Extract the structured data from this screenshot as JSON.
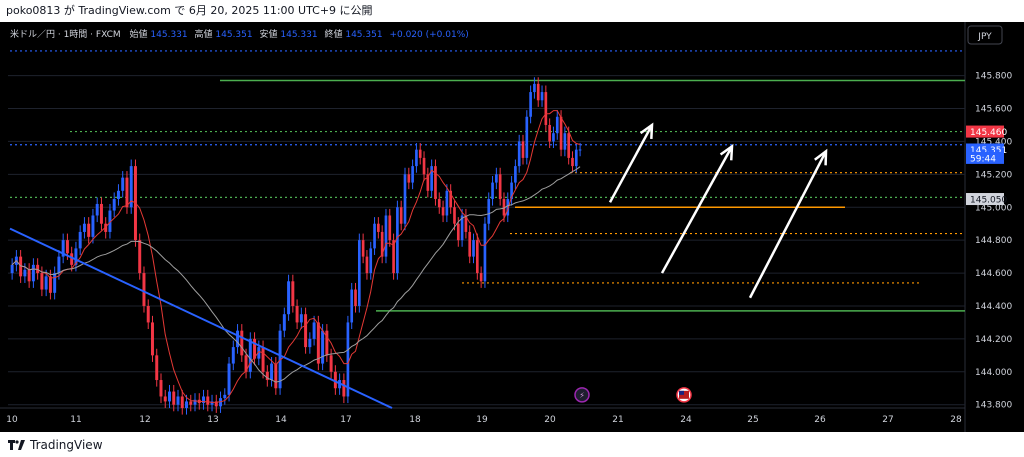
{
  "header": {
    "publish_text": "poko0813 が TradingView.com で 6月 20, 2025 11:00 UTC+9 に公開"
  },
  "legend": {
    "symbol": "米ドル／円 · 1時間 · FXCM",
    "open_label": "始値",
    "open": "145.331",
    "high_label": "高値",
    "high": "145.351",
    "low_label": "安値",
    "low": "145.331",
    "close_label": "終値",
    "close": "145.351",
    "change": "+0.020 (+0.01%)"
  },
  "currency_button": "JPY",
  "footer": {
    "brand": "TradingView"
  },
  "colors": {
    "up": "#2962ff",
    "down": "#f23645",
    "ma_fast": "#e53935",
    "ma_slow": "#9e9e9e",
    "green_line": "#4caf50",
    "orange_line": "#ff9800",
    "trend_line": "#2962ff",
    "arrow": "#ffffff",
    "price_red": "#f23645",
    "price_blue": "#2962ff"
  },
  "chart_data": {
    "type": "candlestick",
    "x_ticks": [
      "10",
      "11",
      "12",
      "13",
      "14",
      "17",
      "18",
      "19",
      "20",
      "21",
      "24",
      "25",
      "26",
      "27",
      "28"
    ],
    "y_ticks": [
      "143.800",
      "144.000",
      "144.200",
      "144.400",
      "144.600",
      "144.800",
      "145.000",
      "145.200",
      "145.400",
      "145.600",
      "145.800"
    ],
    "ylim": [
      143.78,
      145.98
    ],
    "price_labels": [
      {
        "text": "145.460",
        "price": 145.46,
        "style": "red"
      },
      {
        "text": "145.351",
        "price": 145.351,
        "style": "blue"
      },
      {
        "text": "59:44",
        "price": 145.3,
        "style": "blue"
      },
      {
        "text": "145.050",
        "price": 145.05,
        "style": "gray"
      }
    ],
    "levels": [
      {
        "name": "resistance-high",
        "price": 145.77,
        "color": "green",
        "style": "solid",
        "x_start": 220,
        "x_end": 965
      },
      {
        "name": "support-low",
        "price": 144.37,
        "color": "green",
        "style": "solid",
        "x_start": 376,
        "x_end": 965
      },
      {
        "name": "level-145460",
        "price": 145.46,
        "color": "green",
        "style": "dotted",
        "x_start": 70,
        "x_end": 965
      },
      {
        "name": "level-145050",
        "price": 145.06,
        "color": "green",
        "style": "dotted",
        "x_start": 10,
        "x_end": 965
      },
      {
        "name": "level-145220",
        "price": 145.21,
        "color": "orange",
        "style": "dotted",
        "x_start": 570,
        "x_end": 965
      },
      {
        "name": "level-145000",
        "price": 145.0,
        "color": "orange",
        "style": "solid",
        "x_start": 515,
        "x_end": 845
      },
      {
        "name": "level-144840",
        "price": 144.84,
        "color": "orange",
        "style": "dotted",
        "x_start": 510,
        "x_end": 965
      },
      {
        "name": "level-144540",
        "price": 144.54,
        "color": "orange",
        "style": "dotted",
        "x_start": 462,
        "x_end": 922
      },
      {
        "name": "level-145950",
        "price": 145.95,
        "color": "blue",
        "style": "dotted",
        "x_start": 10,
        "x_end": 965
      },
      {
        "name": "level-145380",
        "price": 145.38,
        "color": "blue",
        "style": "dotted",
        "x_start": 10,
        "x_end": 965
      }
    ],
    "trendline": {
      "x_start": 10,
      "price_start": 144.87,
      "x_end": 392,
      "price_end": 143.78
    },
    "arrows": [
      {
        "x1": 610,
        "p1": 145.03,
        "x2": 652,
        "p2": 145.5
      },
      {
        "x1": 662,
        "p1": 144.6,
        "x2": 732,
        "p2": 145.37
      },
      {
        "x1": 750,
        "p1": 144.45,
        "x2": 826,
        "p2": 145.34
      }
    ],
    "markers": [
      {
        "name": "lightning-event-icon",
        "x": 582,
        "price": 143.86
      },
      {
        "name": "us-flag-event-icon",
        "x": 684,
        "price": 143.86
      }
    ],
    "closes_pre_weekend": [
      144.65,
      144.7,
      144.58,
      144.62,
      144.55,
      144.65,
      144.6,
      144.5,
      144.58,
      144.48,
      144.6,
      144.7,
      144.8,
      144.72,
      144.65,
      144.75,
      144.85,
      144.9,
      144.82,
      144.95,
      145.02,
      144.9,
      144.85,
      144.98,
      145.05,
      145.1,
      145.18,
      145.0,
      145.25,
      144.8,
      144.6,
      144.4,
      144.3,
      144.1,
      143.95,
      143.85,
      143.82,
      143.88,
      143.8,
      143.85,
      143.78,
      143.82,
      143.8,
      143.83,
      143.81,
      143.85,
      143.8,
      143.82,
      143.79,
      143.84,
      143.86,
      144.05,
      144.15,
      144.25,
      144.1,
      144.0,
      144.2,
      144.08,
      144.15,
      144.0,
      143.95,
      144.05,
      143.9,
      144.25,
      144.35,
      144.55,
      144.4,
      144.3,
      144.35,
      144.15,
      144.2,
      144.3,
      144.05,
      144.25,
      144.1,
      144.0,
      143.9,
      143.95,
      143.85
    ],
    "closes_post_weekend": [
      144.3,
      144.5,
      144.4,
      144.8,
      144.7,
      144.6,
      144.75,
      144.9,
      144.85,
      144.7,
      144.95,
      144.8,
      144.6,
      145.0,
      144.9,
      145.2,
      145.15,
      145.25,
      145.35,
      145.3,
      145.2,
      145.1,
      145.25,
      145.05,
      145.0,
      144.95,
      145.1,
      145.0,
      144.9,
      144.8,
      144.95,
      144.85,
      144.7,
      144.8,
      144.6,
      144.55,
      144.9,
      145.05,
      145.15,
      145.2,
      145.05,
      144.95,
      145.05,
      145.15,
      145.25,
      145.4,
      145.3,
      145.55,
      145.7,
      145.75,
      145.65,
      145.7,
      145.5,
      145.4,
      145.45,
      145.55,
      145.35,
      145.45,
      145.3,
      145.25,
      145.35,
      145.351
    ]
  }
}
